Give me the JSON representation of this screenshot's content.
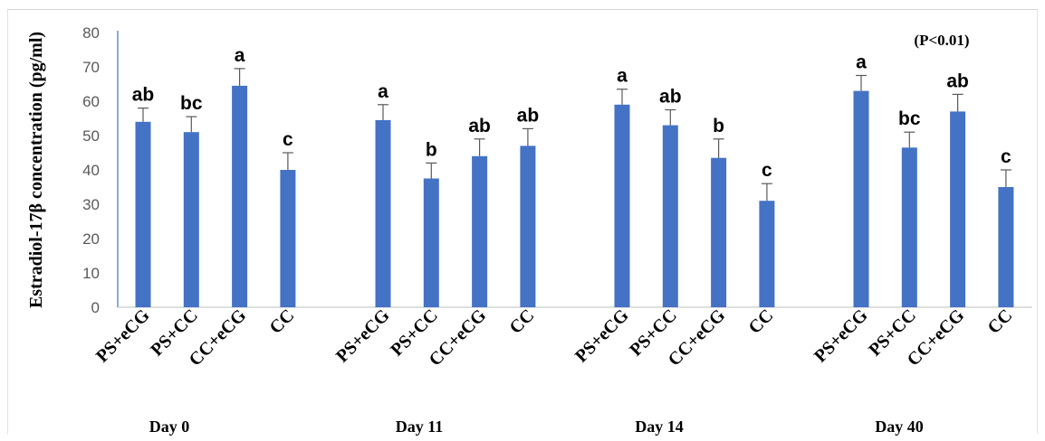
{
  "chart_data": {
    "type": "bar",
    "ylabel": "Estradiol-17β concentration (pg/ml)",
    "annotation": "(P<0.01)",
    "ylim": [
      0,
      80
    ],
    "yticks": [
      0,
      10,
      20,
      30,
      40,
      50,
      60,
      70,
      80
    ],
    "bar_color": "#4472c4",
    "error_color": "#595959",
    "groups": [
      {
        "label": "Day 0",
        "categories": [
          "PS+eCG",
          "PS+CC",
          "CC+eCG",
          "CC"
        ],
        "values": [
          54,
          51,
          64.5,
          40
        ],
        "errors": [
          4,
          4.5,
          5,
          5
        ],
        "letters": [
          "ab",
          "bc",
          "a",
          "c"
        ]
      },
      {
        "label": "Day 11",
        "categories": [
          "PS+eCG",
          "PS+CC",
          "CC+eCG",
          "CC"
        ],
        "values": [
          54.5,
          37.5,
          44,
          47
        ],
        "errors": [
          4.5,
          4.5,
          5,
          5
        ],
        "letters": [
          "a",
          "b",
          "ab",
          "ab"
        ]
      },
      {
        "label": "Day 14",
        "categories": [
          "PS+eCG",
          "PS+CC",
          "CC+eCG",
          "CC"
        ],
        "values": [
          59,
          53,
          43.5,
          31
        ],
        "errors": [
          4.5,
          4.5,
          5.5,
          5
        ],
        "letters": [
          "a",
          "ab",
          "b",
          "c"
        ]
      },
      {
        "label": "Day 40",
        "categories": [
          "PS+eCG",
          "PS+CC",
          "CC+eCG",
          "CC"
        ],
        "values": [
          63,
          46.5,
          57,
          35
        ],
        "errors": [
          4.5,
          4.5,
          5,
          5
        ],
        "letters": [
          "a",
          "bc",
          "ab",
          "c"
        ]
      }
    ]
  }
}
